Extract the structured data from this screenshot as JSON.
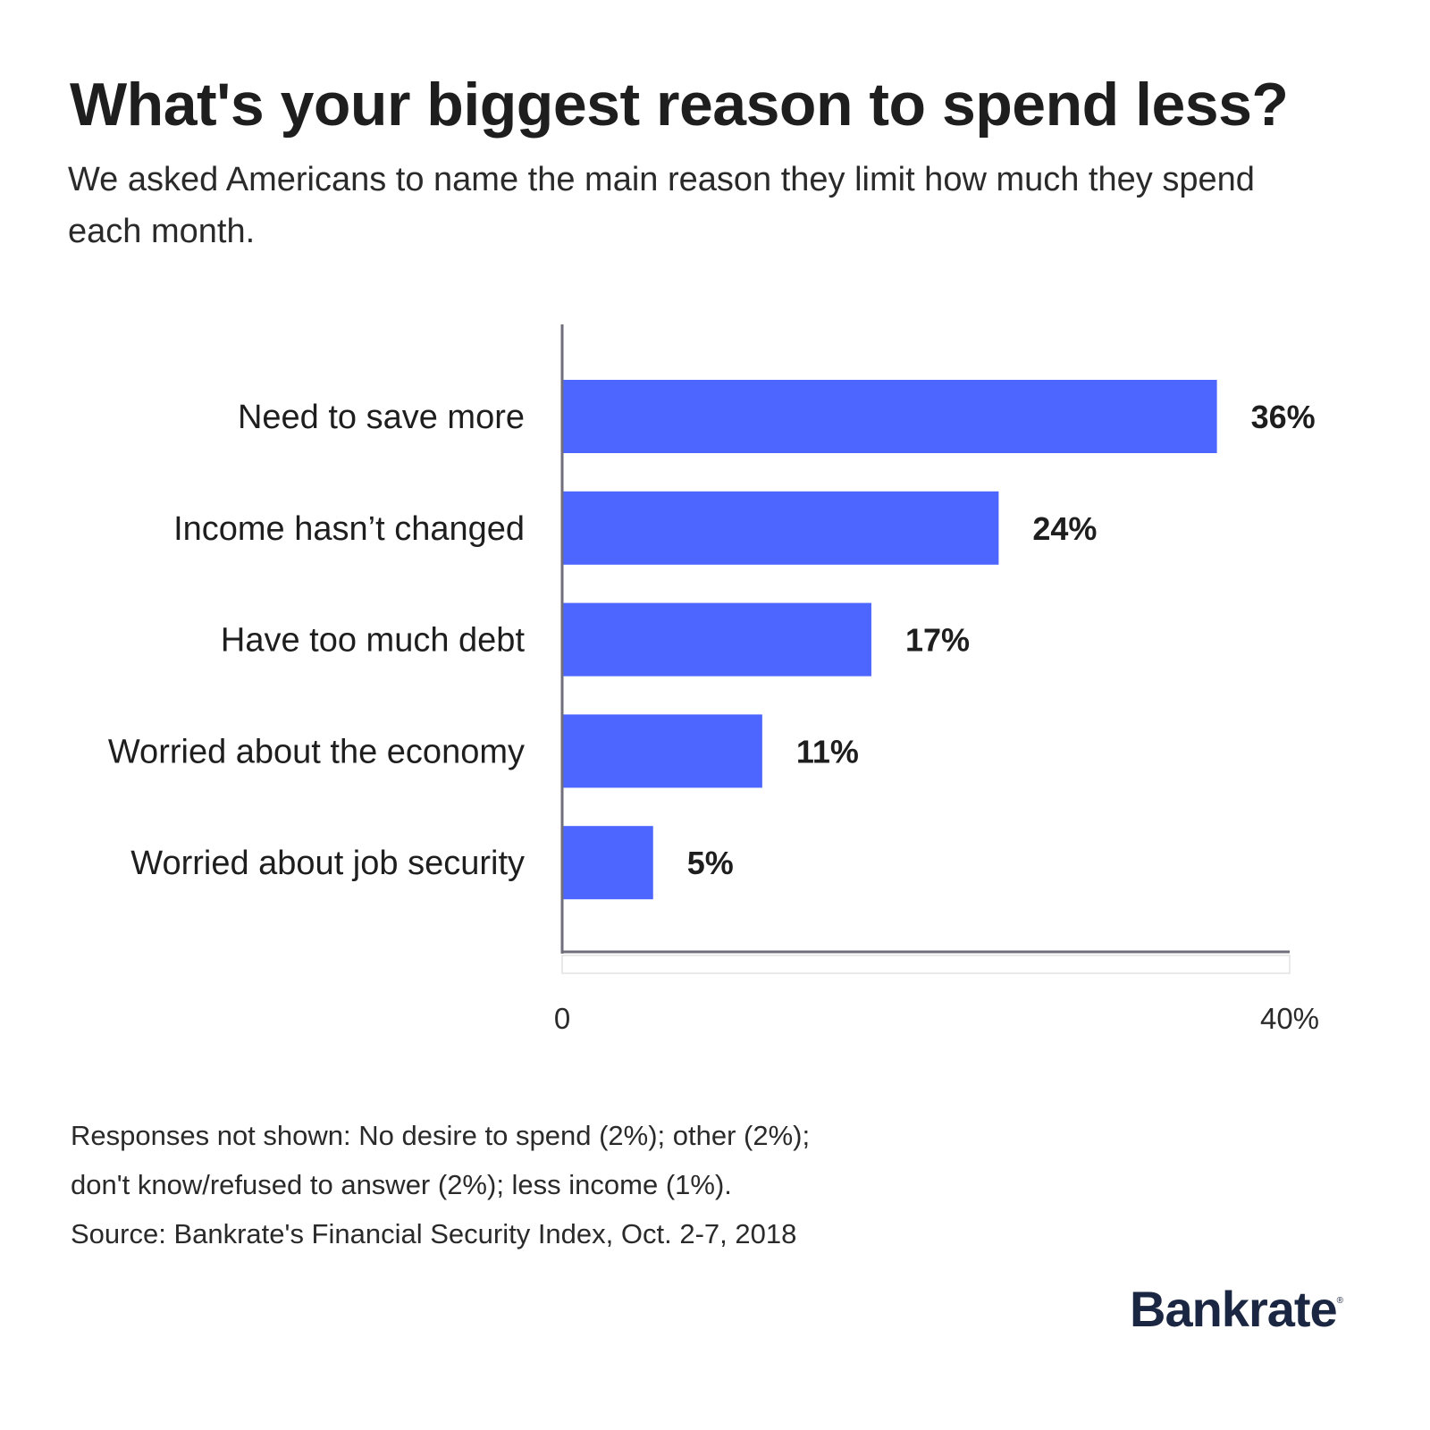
{
  "chart_data": {
    "type": "bar",
    "orientation": "horizontal",
    "title": "What's your biggest reason to spend less?",
    "subtitle": "We asked Americans to name the main reason they limit how much they spend each month.",
    "categories": [
      "Need to save more",
      "Income hasn’t changed",
      "Have too much debt",
      "Worried about the economy",
      "Worried about job security"
    ],
    "values": [
      36,
      24,
      17,
      11,
      5
    ],
    "value_labels": [
      "36%",
      "24%",
      "17%",
      "11%",
      "5%"
    ],
    "xlim": [
      0,
      40
    ],
    "x_tick_labels": [
      "0",
      "40%"
    ],
    "xlabel": "",
    "ylabel": "",
    "grid": false,
    "bar_color": "#4c66ff"
  },
  "notes": [
    "Responses not shown: No desire to spend (2%); other (2%);",
    "don't know/refused to answer (2%); less income (1%).",
    "Source: Bankrate's Financial Security Index, Oct. 2-7, 2018"
  ],
  "logo": {
    "text": "Bankrate",
    "mark": "®",
    "color": "#1b2642"
  }
}
